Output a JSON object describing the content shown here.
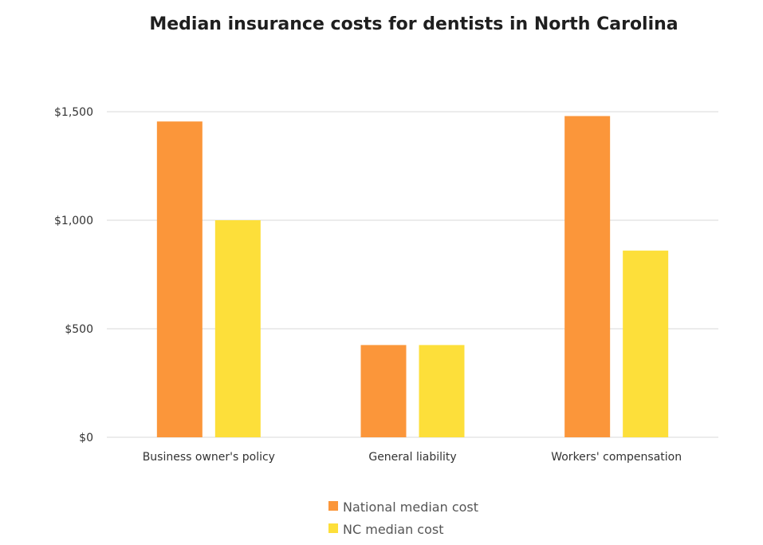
{
  "chart_data": {
    "type": "bar",
    "title": "Median insurance costs for dentists in North Carolina",
    "xlabel": "",
    "ylabel": "",
    "categories": [
      "Business owner's policy",
      "General liability",
      "Workers' compensation"
    ],
    "series": [
      {
        "name": "National median cost",
        "color": "#fb963a",
        "values": [
          1455,
          425,
          1480
        ]
      },
      {
        "name": "NC median cost",
        "color": "#fddf3a",
        "values": [
          1000,
          425,
          860
        ]
      }
    ],
    "ylim": [
      0,
      1500
    ],
    "yticks": [
      0,
      500,
      1000,
      1500
    ],
    "ytick_labels": [
      "$0",
      "$500",
      "$1,000",
      "$1,500"
    ],
    "grid": true,
    "legend_position": "bottom-center"
  }
}
